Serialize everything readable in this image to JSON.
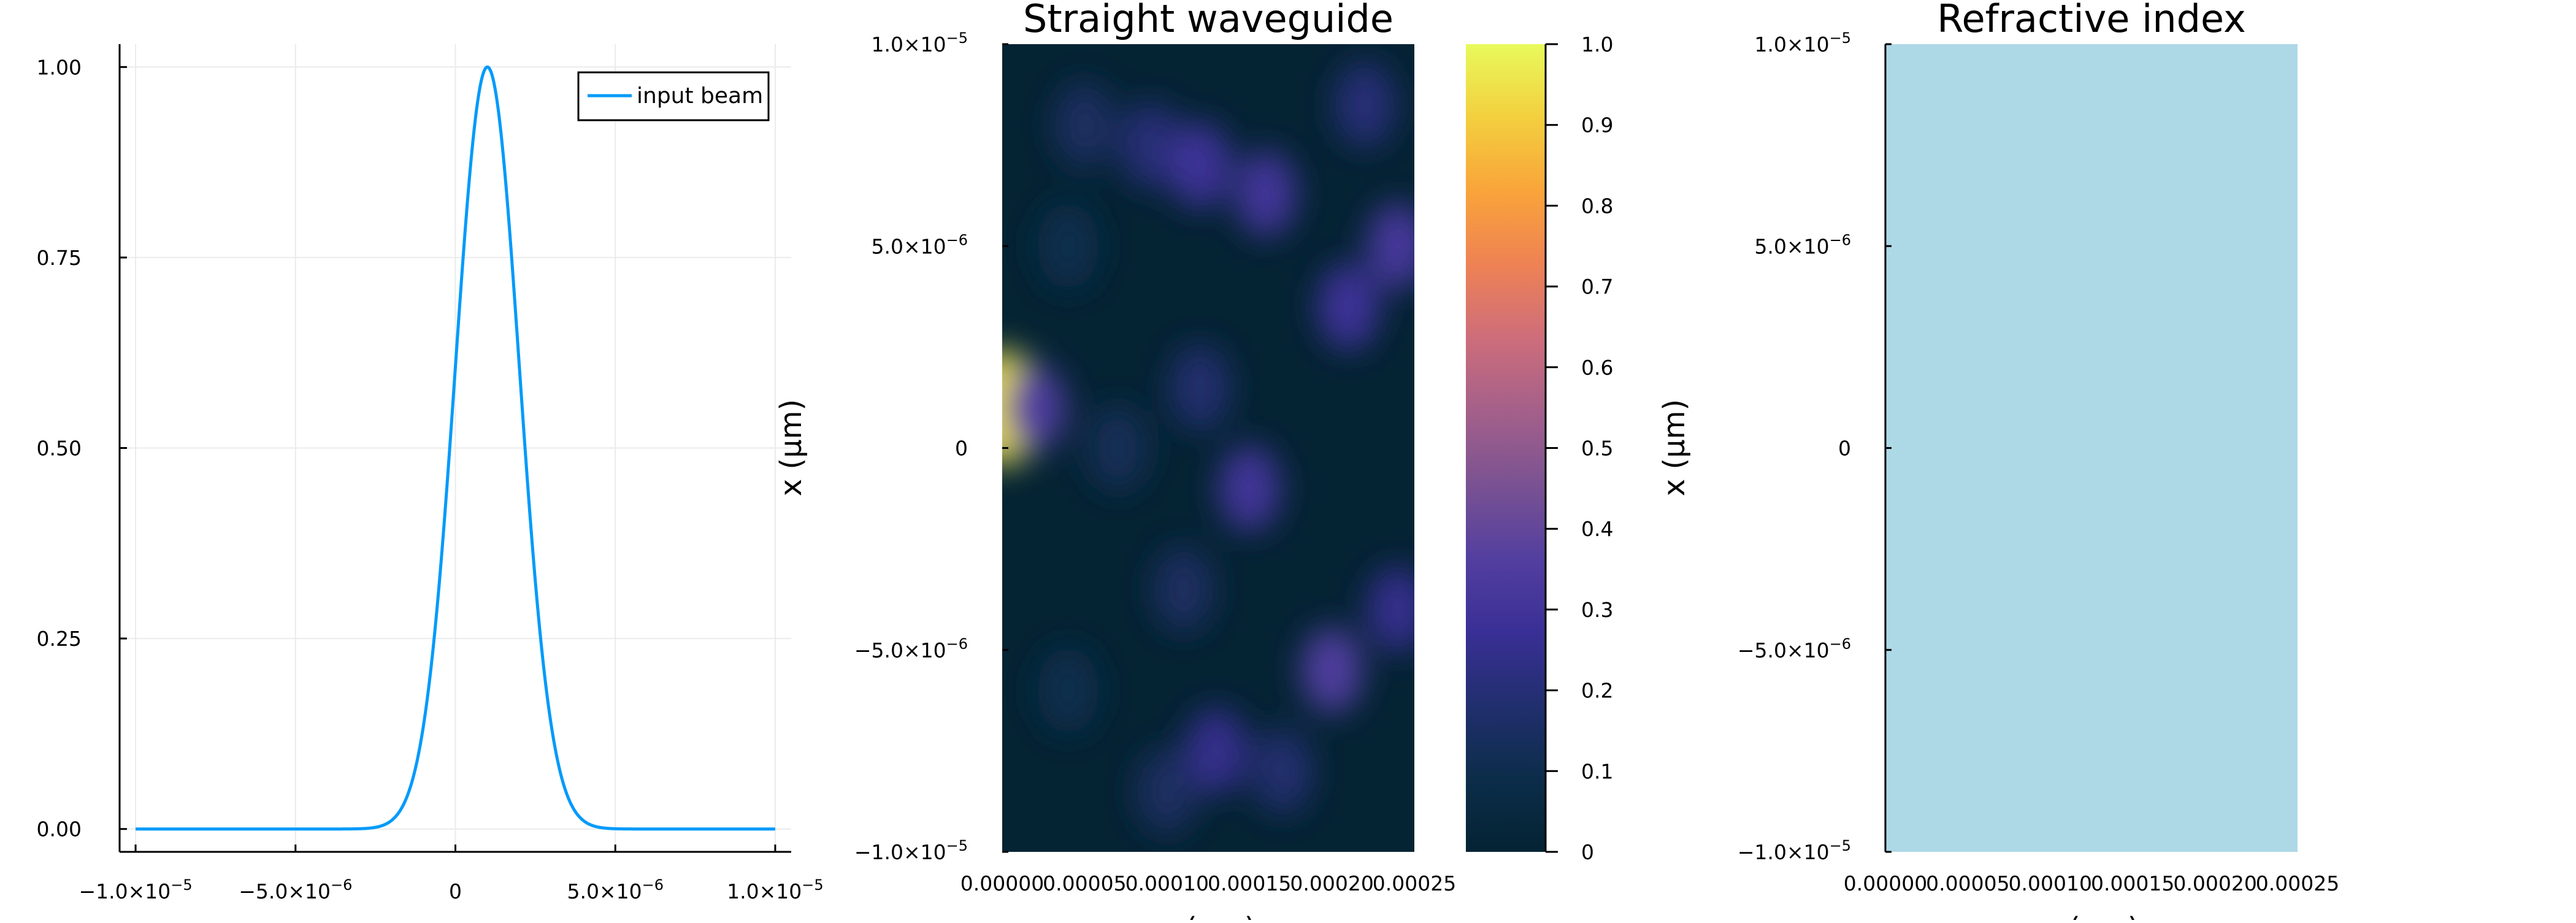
{
  "colors": {
    "beam_line": "#009AFA",
    "grid": "#EBEBEB",
    "refractive_fill": "#ADD8E6"
  },
  "chart_data": [
    {
      "type": "line",
      "title": "",
      "xlabel": "",
      "ylabel": "",
      "xlim": [
        -1.05e-05,
        1.05e-05
      ],
      "ylim": [
        -0.03,
        1.03
      ],
      "grid": true,
      "legend_position": "top-right",
      "series": [
        {
          "name": "input beam",
          "function": "gaussian",
          "amplitude": 1.0,
          "center": 1e-06,
          "sigma": 1e-06,
          "x_range": [
            -1e-05,
            1e-05
          ]
        }
      ],
      "x_ticks": [
        {
          "value": -1e-05,
          "mantissa": "−1.0×10",
          "exp": "−5"
        },
        {
          "value": -5e-06,
          "mantissa": "−5.0×10",
          "exp": "−6"
        },
        {
          "value": 0,
          "mantissa": "0",
          "exp": ""
        },
        {
          "value": 5e-06,
          "mantissa": "5.0×10",
          "exp": "−6"
        },
        {
          "value": 1e-05,
          "mantissa": "1.0×10",
          "exp": "−5"
        }
      ],
      "y_ticks": [
        {
          "value": 0.0,
          "label": "0.00"
        },
        {
          "value": 0.25,
          "label": "0.25"
        },
        {
          "value": 0.5,
          "label": "0.50"
        },
        {
          "value": 0.75,
          "label": "0.75"
        },
        {
          "value": 1.0,
          "label": "1.00"
        }
      ]
    },
    {
      "type": "heatmap",
      "title": "Straight waveguide",
      "xlabel": "z (μm)",
      "ylabel": "x (μm)",
      "xlim": [
        0,
        0.00025
      ],
      "ylim": [
        -1e-05,
        1e-05
      ],
      "colormap": "thermal",
      "colorbar": {
        "min": 0,
        "max": 1,
        "ticks": [
          "0",
          "0.1",
          "0.2",
          "0.3",
          "0.4",
          "0.5",
          "0.6",
          "0.7",
          "0.8",
          "0.9",
          "1.0"
        ]
      },
      "colormap_stops": [
        "#042333",
        "#0C2D4A",
        "#212F6E",
        "#3A2F96",
        "#533F9F",
        "#7A5292",
        "#A4608A",
        "#CE6D7B",
        "#EE8254",
        "#F9A43A",
        "#F3CF3E",
        "#E8FA5B"
      ],
      "hotspots": [
        {
          "z": 0.0,
          "x": 1e-06,
          "value": 0.95
        },
        {
          "z": 2e-05,
          "x": 1e-06,
          "value": 0.35
        },
        {
          "z": 5e-05,
          "x": 8e-06,
          "value": 0.15
        },
        {
          "z": 9e-05,
          "x": 7.5e-06,
          "value": 0.2
        },
        {
          "z": 0.00012,
          "x": 7e-06,
          "value": 0.28
        },
        {
          "z": 0.00016,
          "x": 6.3e-06,
          "value": 0.3
        },
        {
          "z": 0.00022,
          "x": 8.5e-06,
          "value": 0.2
        },
        {
          "z": 0.00024,
          "x": 5e-06,
          "value": 0.32
        },
        {
          "z": 0.00021,
          "x": 3.5e-06,
          "value": 0.28
        },
        {
          "z": 0.00012,
          "x": 1.5e-06,
          "value": 0.18
        },
        {
          "z": 0.00015,
          "x": -1e-06,
          "value": 0.3
        },
        {
          "z": 7e-05,
          "x": 0.0,
          "value": 0.12
        },
        {
          "z": 0.00011,
          "x": -3.5e-06,
          "value": 0.15
        },
        {
          "z": 0.0002,
          "x": -5.5e-06,
          "value": 0.35
        },
        {
          "z": 0.00024,
          "x": -4e-06,
          "value": 0.25
        },
        {
          "z": 0.00013,
          "x": -7.5e-06,
          "value": 0.25
        },
        {
          "z": 0.00017,
          "x": -8e-06,
          "value": 0.18
        },
        {
          "z": 0.0001,
          "x": -8.5e-06,
          "value": 0.15
        },
        {
          "z": 4e-05,
          "x": -6e-06,
          "value": 0.1
        },
        {
          "z": 4e-05,
          "x": 5e-06,
          "value": 0.1
        }
      ],
      "x_ticks": [
        "0.00000",
        "0.00005",
        "0.00010",
        "0.00015",
        "0.00020",
        "0.00025"
      ],
      "y_ticks": [
        {
          "value": 1e-05,
          "mantissa": "1.0×10",
          "exp": "−5"
        },
        {
          "value": 5e-06,
          "mantissa": "5.0×10",
          "exp": "−6"
        },
        {
          "value": 0,
          "mantissa": "0",
          "exp": ""
        },
        {
          "value": -5e-06,
          "mantissa": "−5.0×10",
          "exp": "−6"
        },
        {
          "value": -1e-05,
          "mantissa": "−1.0×10",
          "exp": "−5"
        }
      ]
    },
    {
      "type": "heatmap",
      "title": "Refractive index",
      "xlabel": "z (μm)",
      "ylabel": "x (μm)",
      "xlim": [
        0,
        0.00025
      ],
      "ylim": [
        -1e-05,
        1e-05
      ],
      "uniform_fill": "#ADD8E6",
      "x_ticks": [
        "0.00000",
        "0.00005",
        "0.00010",
        "0.00015",
        "0.00020",
        "0.00025"
      ],
      "y_ticks": [
        {
          "value": 1e-05,
          "mantissa": "1.0×10",
          "exp": "−5"
        },
        {
          "value": 5e-06,
          "mantissa": "5.0×10",
          "exp": "−6"
        },
        {
          "value": 0,
          "mantissa": "0",
          "exp": ""
        },
        {
          "value": -5e-06,
          "mantissa": "−5.0×10",
          "exp": "−6"
        },
        {
          "value": -1e-05,
          "mantissa": "−1.0×10",
          "exp": "−5"
        }
      ]
    }
  ]
}
